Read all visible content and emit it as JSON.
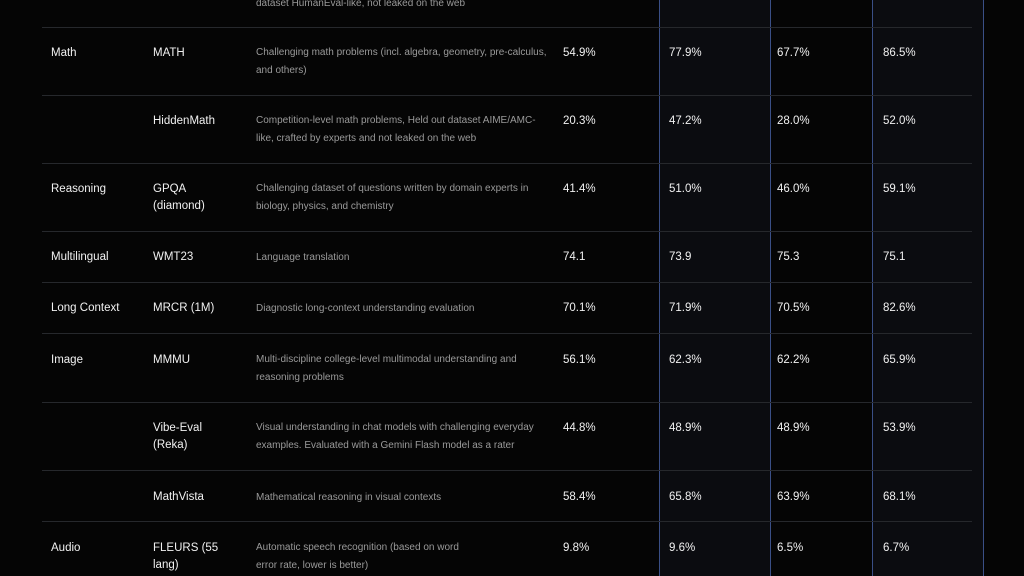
{
  "top_fragment": "dataset HumanEval-like, not leaked on the web",
  "rows": [
    {
      "category": "Math",
      "benchmark": "MATH",
      "description": "Challenging math problems (incl. algebra, geometry, pre-calculus, and others)",
      "values": [
        "54.9%",
        "77.9%",
        "67.7%",
        "86.5%"
      ]
    },
    {
      "category": "",
      "benchmark": "HiddenMath",
      "description": "Competition-level math problems, Held out dataset AIME/AMC-like, crafted by experts and not leaked on the web",
      "values": [
        "20.3%",
        "47.2%",
        "28.0%",
        "52.0%"
      ]
    },
    {
      "category": "Reasoning",
      "benchmark": "GPQA (diamond)",
      "description": "Challenging dataset of questions written by domain experts in biology, physics, and chemistry",
      "values": [
        "41.4%",
        "51.0%",
        "46.0%",
        "59.1%"
      ]
    },
    {
      "category": "Multilingual",
      "benchmark": "WMT23",
      "description": "Language translation",
      "values": [
        "74.1",
        "73.9",
        "75.3",
        "75.1"
      ]
    },
    {
      "category": "Long Context",
      "benchmark": "MRCR (1M)",
      "description": "Diagnostic long-context understanding evaluation",
      "values": [
        "70.1%",
        "71.9%",
        "70.5%",
        "82.6%"
      ]
    },
    {
      "category": "Image",
      "benchmark": "MMMU",
      "description": "Multi-discipline college-level multimodal understanding and reasoning problems",
      "values": [
        "56.1%",
        "62.3%",
        "62.2%",
        "65.9%"
      ]
    },
    {
      "category": "",
      "benchmark": "Vibe-Eval (Reka)",
      "description": "Visual understanding in chat models with challenging everyday examples. Evaluated with a Gemini Flash model as a rater",
      "values": [
        "44.8%",
        "48.9%",
        "48.9%",
        "53.9%"
      ]
    },
    {
      "category": "",
      "benchmark": "MathVista",
      "description": "Mathematical reasoning in visual contexts",
      "values": [
        "58.4%",
        "65.8%",
        "63.9%",
        "68.1%"
      ]
    },
    {
      "category": "Audio",
      "benchmark": "FLEURS (55 lang)",
      "description": "Automatic speech recognition (based on word error rate, lower is better)",
      "values": [
        "9.8%",
        "9.6%",
        "6.5%",
        "6.7%"
      ]
    }
  ]
}
